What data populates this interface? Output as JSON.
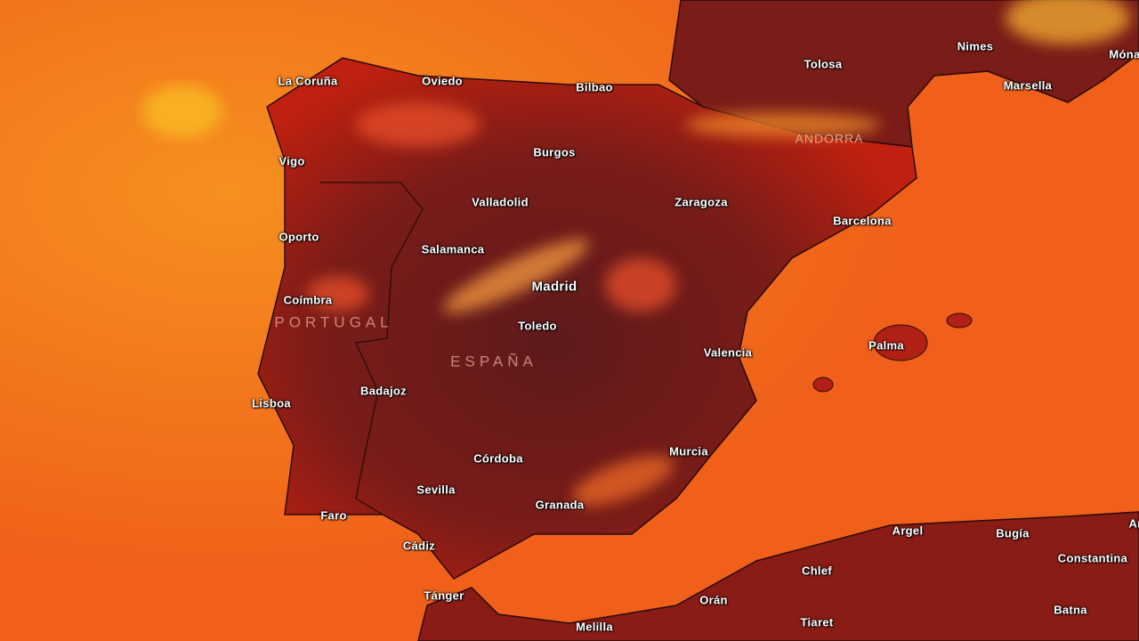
{
  "map": {
    "type": "temperature heat map",
    "colors": {
      "sea": "#f0601a",
      "land_hot": "#6a1a1a",
      "land_mid": "#c81e0f",
      "highlands": "#f5a030",
      "border": "#2a0c08"
    },
    "countries": {
      "portugal": "PORTUGAL",
      "espana": "ESPAÑA",
      "andorra": "ANDORRA"
    },
    "cities": {
      "la_coruna": "La Coruña",
      "oviedo": "Oviedo",
      "bilbao": "Bilbao",
      "tolosa": "Tolosa",
      "nimes": "Nimes",
      "marsella": "Marsella",
      "monaco": "Móna",
      "vigo": "Vigo",
      "burgos": "Burgos",
      "valladolid": "Valladolid",
      "zaragoza": "Zaragoza",
      "barcelona": "Barcelona",
      "oporto": "Oporto",
      "salamanca": "Salamanca",
      "madrid": "Madrid",
      "coimbra": "Coímbra",
      "toledo": "Toledo",
      "valencia": "Valencia",
      "palma": "Palma",
      "badajoz": "Badajoz",
      "lisboa": "Lisboa",
      "murcia": "Murcia",
      "cordoba": "Córdoba",
      "sevilla": "Sevilla",
      "granada": "Granada",
      "faro": "Faro",
      "cadiz": "Cádiz",
      "argel": "Argel",
      "bugia": "Bugía",
      "constantina": "Constantina",
      "chlef": "Chlef",
      "tanger": "Tánger",
      "oran": "Orán",
      "melilla": "Melilla",
      "tiaret": "Tiaret",
      "batna": "Batna",
      "annaba_partial": "Ar"
    }
  }
}
